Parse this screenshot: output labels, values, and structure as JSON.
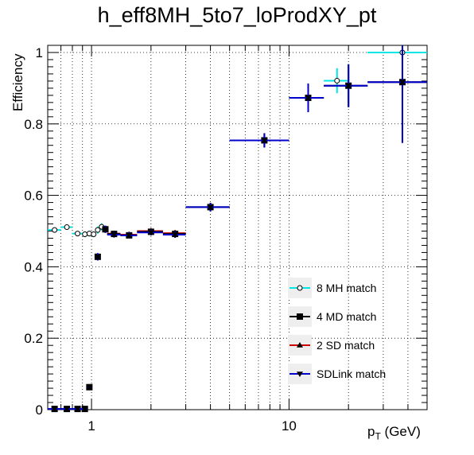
{
  "chart_data": {
    "type": "scatter",
    "title": "h_eff8MH_5to7_loProdXY_pt",
    "xlabel": "p_T (GeV)",
    "ylabel": "Efficiency",
    "xscale": "log",
    "xlim": [
      0.6,
      50
    ],
    "ylim": [
      0,
      1.02
    ],
    "grid": true,
    "legend_position": "bottom-right",
    "x_tick_labels": [
      "1",
      "10"
    ],
    "y_tick_labels": [
      "0",
      "0.2",
      "0.4",
      "0.6",
      "0.8",
      "1"
    ],
    "series": [
      {
        "name": "8 MH match",
        "color": "#00e5e5",
        "marker": "open-circle",
        "points": [
          {
            "x": 0.65,
            "xlo": 0.6,
            "xhi": 0.7,
            "y": 0.503,
            "err": 0.006
          },
          {
            "x": 0.75,
            "xlo": 0.7,
            "xhi": 0.8,
            "y": 0.511,
            "err": 0.006
          },
          {
            "x": 0.85,
            "xlo": 0.8,
            "xhi": 0.9,
            "y": 0.493,
            "err": 0.006
          },
          {
            "x": 0.925,
            "xlo": 0.9,
            "xhi": 0.95,
            "y": 0.491,
            "err": 0.008
          },
          {
            "x": 0.975,
            "xlo": 0.95,
            "xhi": 1.0,
            "y": 0.493,
            "err": 0.008
          },
          {
            "x": 1.025,
            "xlo": 1.0,
            "xhi": 1.05,
            "y": 0.491,
            "err": 0.008
          },
          {
            "x": 1.075,
            "xlo": 1.05,
            "xhi": 1.1,
            "y": 0.503,
            "err": 0.01
          },
          {
            "x": 1.125,
            "xlo": 1.1,
            "xhi": 1.15,
            "y": 0.512,
            "err": 0.01
          },
          {
            "x": 17.5,
            "xlo": 15,
            "xhi": 20,
            "y": 0.921,
            "err": 0.035
          },
          {
            "x": 37.5,
            "xlo": 25,
            "xhi": 50,
            "y": 1.0,
            "err": 0.0
          }
        ]
      },
      {
        "name": "4 MD match",
        "color": "#000000",
        "marker": "filled-square",
        "points": [
          {
            "x": 0.65,
            "xlo": 0.6,
            "xhi": 0.7,
            "y": 0.002,
            "err": 0.002
          },
          {
            "x": 0.75,
            "xlo": 0.7,
            "xhi": 0.8,
            "y": 0.002,
            "err": 0.002
          },
          {
            "x": 0.85,
            "xlo": 0.8,
            "xhi": 0.9,
            "y": 0.002,
            "err": 0.002
          },
          {
            "x": 0.925,
            "xlo": 0.9,
            "xhi": 0.95,
            "y": 0.002,
            "err": 0.002
          },
          {
            "x": 0.975,
            "xlo": 0.95,
            "xhi": 1.0,
            "y": 0.063,
            "err": 0.005
          },
          {
            "x": 1.075,
            "xlo": 1.05,
            "xhi": 1.1,
            "y": 0.428,
            "err": 0.01
          },
          {
            "x": 1.175,
            "xlo": 1.15,
            "xhi": 1.2,
            "y": 0.505,
            "err": 0.01
          },
          {
            "x": 1.3,
            "xlo": 1.2,
            "xhi": 1.4,
            "y": 0.492,
            "err": 0.008
          },
          {
            "x": 1.55,
            "xlo": 1.4,
            "xhi": 1.7,
            "y": 0.488,
            "err": 0.008
          },
          {
            "x": 2.0,
            "xlo": 1.7,
            "xhi": 2.3,
            "y": 0.498,
            "err": 0.008
          },
          {
            "x": 2.65,
            "xlo": 2.3,
            "xhi": 3.0,
            "y": 0.492,
            "err": 0.009
          },
          {
            "x": 4.0,
            "xlo": 3.0,
            "xhi": 5.0,
            "y": 0.567,
            "err": 0.012
          },
          {
            "x": 7.5,
            "xlo": 5.0,
            "xhi": 10.0,
            "y": 0.754,
            "err": 0.02
          },
          {
            "x": 12.5,
            "xlo": 10.0,
            "xhi": 15.0,
            "y": 0.873,
            "err": 0.04
          },
          {
            "x": 20.0,
            "xlo": 15.0,
            "xhi": 25.0,
            "y": 0.907,
            "err": 0.06
          },
          {
            "x": 37.5,
            "xlo": 25.0,
            "xhi": 50.0,
            "y": 0.917,
            "err": 0.17
          }
        ]
      },
      {
        "name": "2 SD match",
        "color": "#cc0000",
        "marker": "filled-triangle-up",
        "points": [
          {
            "x": 1.3,
            "xlo": 1.2,
            "xhi": 1.4,
            "y": 0.493,
            "err": 0.008
          },
          {
            "x": 1.55,
            "xlo": 1.4,
            "xhi": 1.7,
            "y": 0.49,
            "err": 0.008
          },
          {
            "x": 2.0,
            "xlo": 1.7,
            "xhi": 2.3,
            "y": 0.5,
            "err": 0.008
          },
          {
            "x": 2.65,
            "xlo": 2.3,
            "xhi": 3.0,
            "y": 0.494,
            "err": 0.009
          }
        ]
      },
      {
        "name": "SDLink match",
        "color": "#0000cc",
        "marker": "filled-triangle-down",
        "points": [
          {
            "x": 0.65,
            "xlo": 0.6,
            "xhi": 0.7,
            "y": 0.002,
            "err": 0.002
          },
          {
            "x": 0.75,
            "xlo": 0.7,
            "xhi": 0.8,
            "y": 0.002,
            "err": 0.002
          },
          {
            "x": 0.85,
            "xlo": 0.8,
            "xhi": 0.9,
            "y": 0.002,
            "err": 0.002
          },
          {
            "x": 0.925,
            "xlo": 0.9,
            "xhi": 0.95,
            "y": 0.002,
            "err": 0.002
          },
          {
            "x": 0.975,
            "xlo": 0.95,
            "xhi": 1.0,
            "y": 0.063,
            "err": 0.005
          },
          {
            "x": 1.075,
            "xlo": 1.05,
            "xhi": 1.1,
            "y": 0.428,
            "err": 0.01
          },
          {
            "x": 1.175,
            "xlo": 1.15,
            "xhi": 1.2,
            "y": 0.505,
            "err": 0.01
          },
          {
            "x": 1.3,
            "xlo": 1.2,
            "xhi": 1.4,
            "y": 0.49,
            "err": 0.008
          },
          {
            "x": 1.55,
            "xlo": 1.4,
            "xhi": 1.7,
            "y": 0.488,
            "err": 0.008
          },
          {
            "x": 2.0,
            "xlo": 1.7,
            "xhi": 2.3,
            "y": 0.496,
            "err": 0.008
          },
          {
            "x": 2.65,
            "xlo": 2.3,
            "xhi": 3.0,
            "y": 0.49,
            "err": 0.009
          },
          {
            "x": 4.0,
            "xlo": 3.0,
            "xhi": 5.0,
            "y": 0.567,
            "err": 0.012
          },
          {
            "x": 7.5,
            "xlo": 5.0,
            "xhi": 10.0,
            "y": 0.754,
            "err": 0.02
          },
          {
            "x": 12.5,
            "xlo": 10.0,
            "xhi": 15.0,
            "y": 0.873,
            "err": 0.04
          },
          {
            "x": 20.0,
            "xlo": 15.0,
            "xhi": 25.0,
            "y": 0.907,
            "err": 0.06
          },
          {
            "x": 37.5,
            "xlo": 25.0,
            "xhi": 50.0,
            "y": 0.917,
            "err": 0.17
          }
        ]
      }
    ]
  }
}
